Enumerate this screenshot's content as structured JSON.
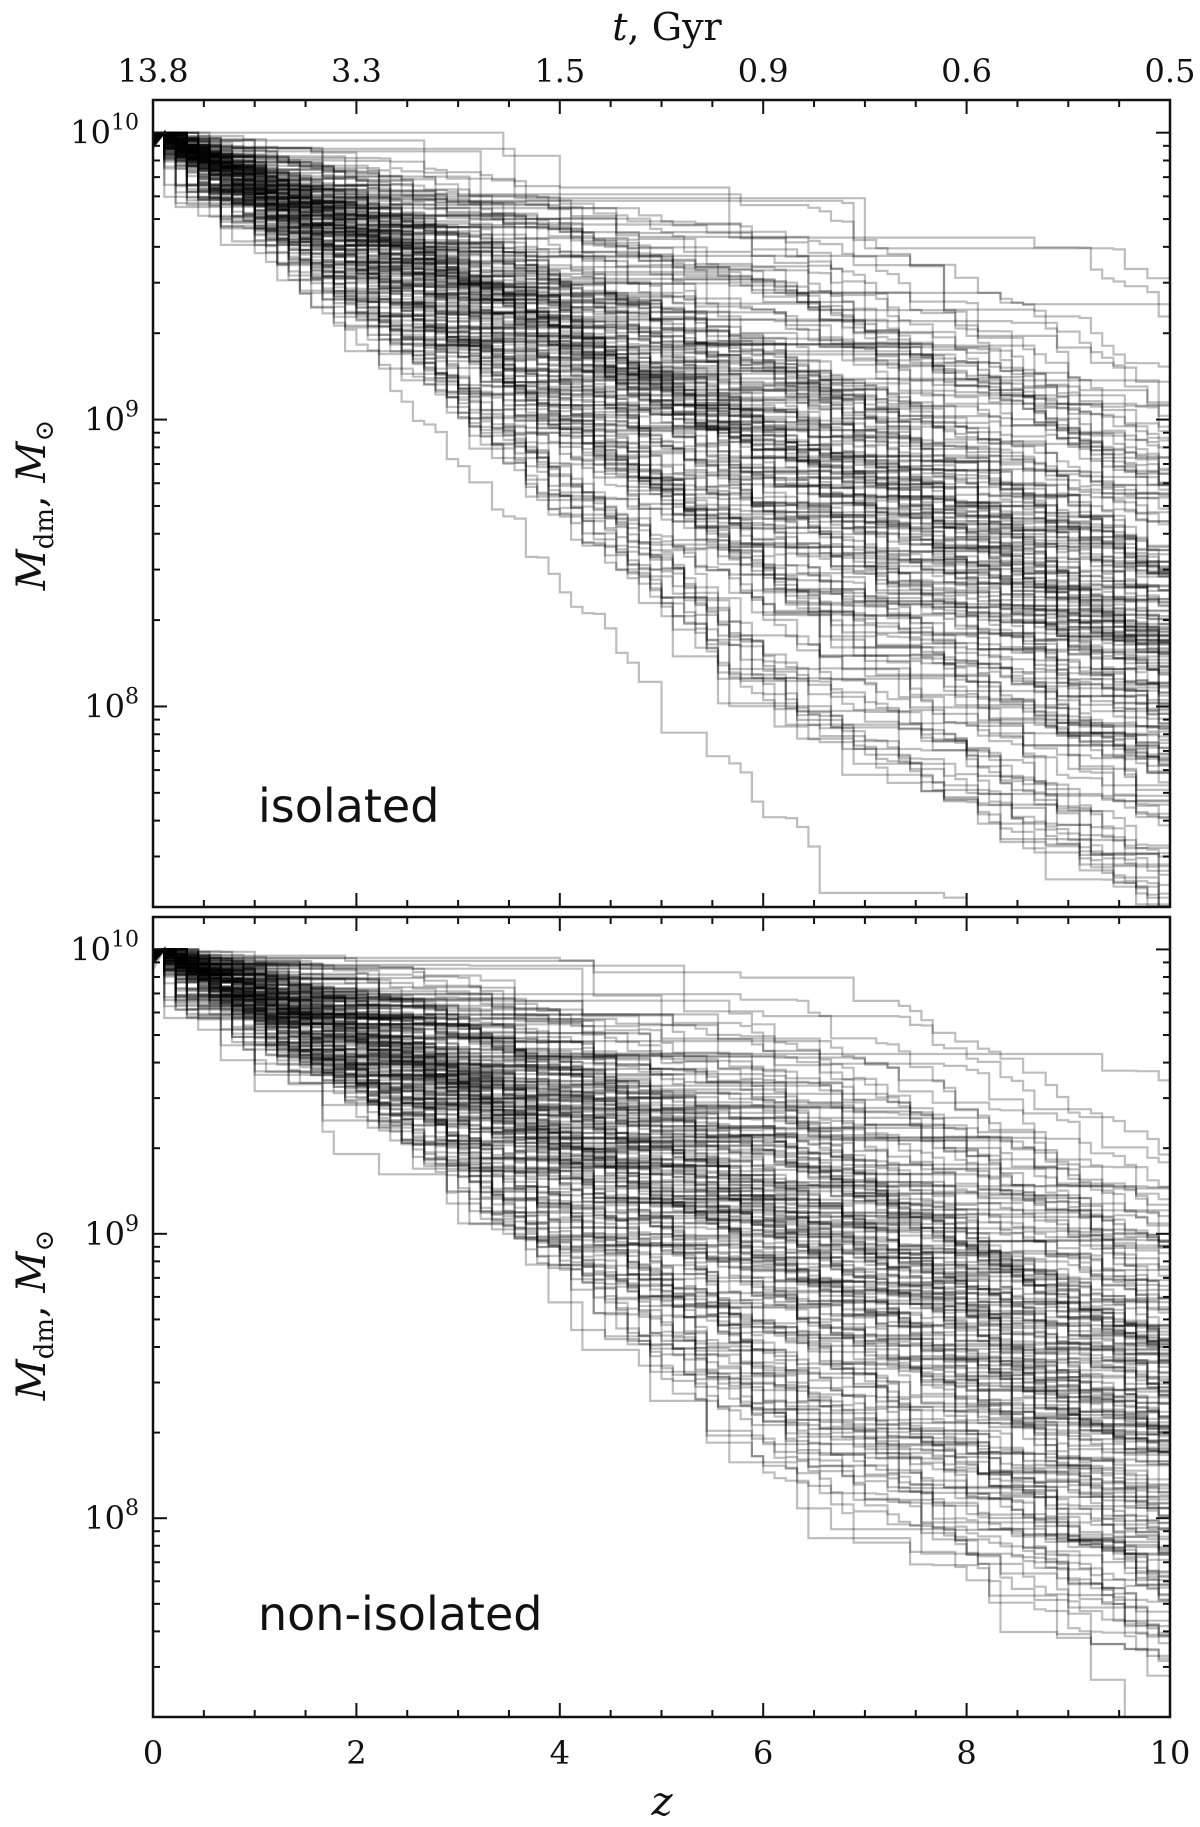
{
  "chart_data": [
    {
      "type": "line",
      "panel_label": "isolated",
      "xlabel": "z",
      "ylabel": "M_dm, M_⊙",
      "ylabel_main": "M",
      "ylabel_sub": "dm",
      "ylabel_unit": "M",
      "ylabel_unit_sub": "⊙",
      "yscale": "log",
      "xlim": [
        0,
        10
      ],
      "ylim": [
        20000000.0,
        13000000000.0
      ],
      "x_ticks": [
        "0",
        "2",
        "4",
        "6",
        "8",
        "10"
      ],
      "y_ticks": [
        {
          "base": "10",
          "exp": "10",
          "value": 10000000000.0
        },
        {
          "base": "10",
          "exp": "9",
          "value": 1000000000.0
        },
        {
          "base": "10",
          "exp": "8",
          "value": 100000000.0
        }
      ],
      "top_axis": {
        "label": "t, Gyr",
        "label_var": "t",
        "label_unit": "Gyr",
        "ticks": [
          "13.8",
          "3.3",
          "1.5",
          "0.9",
          "0.6",
          "0.5"
        ]
      },
      "series_count": 180,
      "line_color": "#000000",
      "line_alpha": 0.26,
      "description_of_series": "mass accretion histories, each starting at 1e10 at z=0 and decreasing stepwise with z",
      "end_mass_range_at_z10": [
        10000000.0,
        1500000000.0
      ],
      "median_mass_at_z": {
        "0": 10000000000.0,
        "2": 5000000000.0,
        "4": 2200000000.0,
        "6": 1000000000.0,
        "8": 450000000.0,
        "10": 180000000.0
      }
    },
    {
      "type": "line",
      "panel_label": "non-isolated",
      "xlabel": "z",
      "ylabel": "M_dm, M_⊙",
      "ylabel_main": "M",
      "ylabel_sub": "dm",
      "ylabel_unit": "M",
      "ylabel_unit_sub": "⊙",
      "yscale": "log",
      "xlim": [
        0,
        10
      ],
      "ylim": [
        20000000.0,
        13000000000.0
      ],
      "x_ticks": [
        "0",
        "2",
        "4",
        "6",
        "8",
        "10"
      ],
      "y_ticks": [
        {
          "base": "10",
          "exp": "10",
          "value": 10000000000.0
        },
        {
          "base": "10",
          "exp": "9",
          "value": 1000000000.0
        },
        {
          "base": "10",
          "exp": "8",
          "value": 100000000.0
        }
      ],
      "series_count": 180,
      "line_color": "#000000",
      "line_alpha": 0.26,
      "description_of_series": "mass accretion histories, each starting at 1e10 at z=0 and decreasing stepwise with z",
      "end_mass_range_at_z10": [
        10000000.0,
        2000000000.0
      ],
      "median_mass_at_z": {
        "0": 10000000000.0,
        "2": 6000000000.0,
        "4": 3000000000.0,
        "6": 1400000000.0,
        "8": 600000000.0,
        "10": 250000000.0
      }
    }
  ]
}
